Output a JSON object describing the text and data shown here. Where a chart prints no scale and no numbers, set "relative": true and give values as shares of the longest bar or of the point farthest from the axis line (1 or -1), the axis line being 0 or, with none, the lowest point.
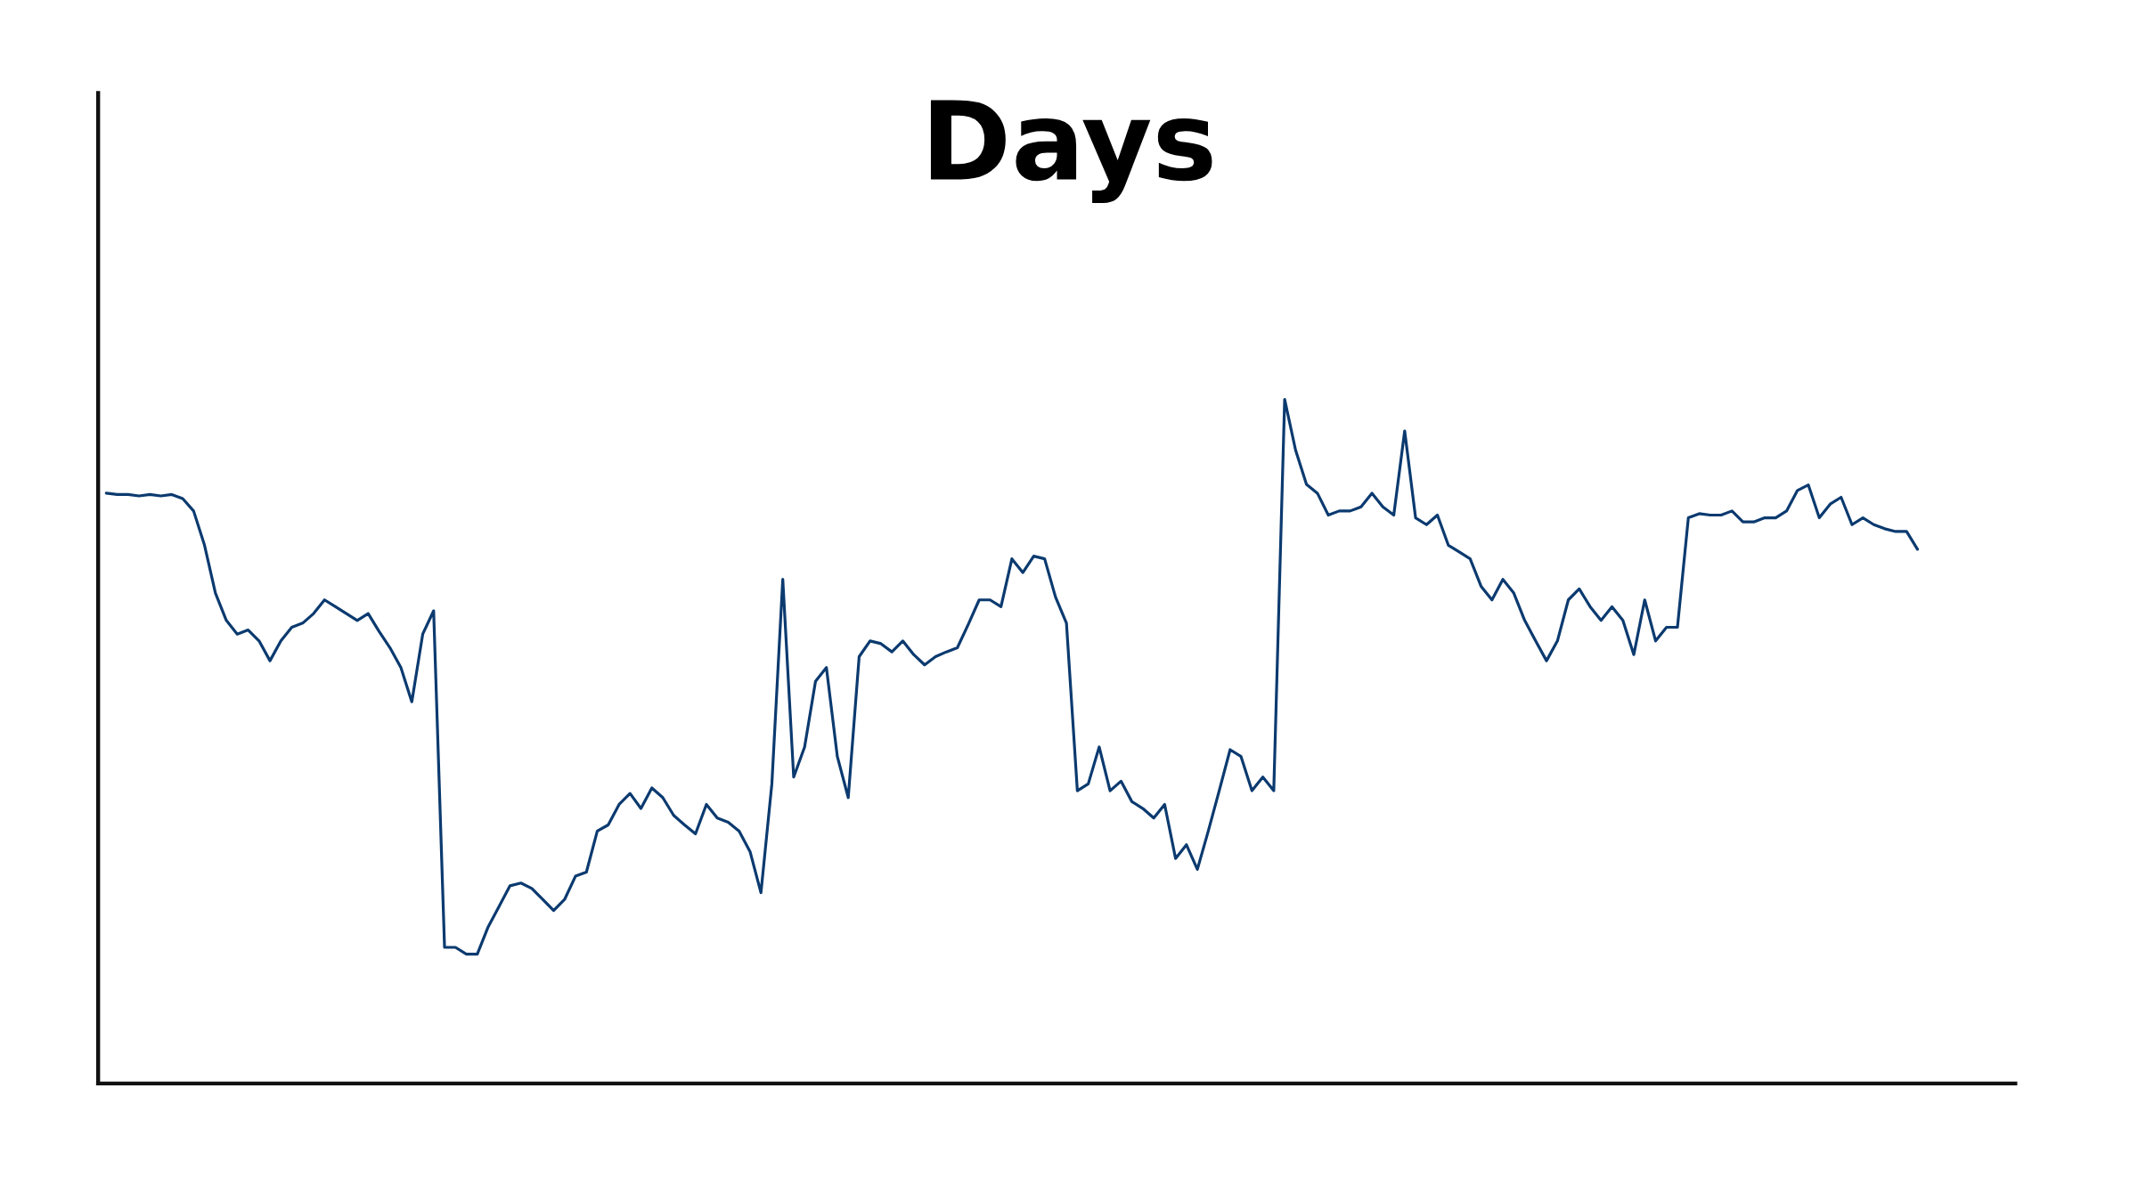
{
  "chart_data": {
    "type": "line",
    "title": "Days",
    "relative": true,
    "grid": false,
    "tick_labels": false,
    "categories": [
      null,
      null,
      null,
      null,
      null,
      null,
      null,
      null,
      null,
      null,
      null,
      null,
      null,
      null,
      null,
      null,
      null,
      null,
      null,
      null,
      null,
      null,
      null,
      null,
      null,
      null,
      null,
      null,
      null,
      null,
      null,
      null,
      null,
      null,
      null,
      null,
      null,
      null,
      null,
      null,
      null,
      null,
      null,
      null,
      null,
      null,
      null,
      null,
      null,
      null,
      null,
      null,
      null,
      null,
      null,
      null,
      null,
      null,
      null,
      null,
      null,
      null,
      null,
      null,
      null,
      null,
      null,
      null,
      null,
      null,
      null,
      null,
      null,
      null,
      null,
      null,
      null,
      null,
      null,
      null,
      null,
      null,
      null,
      null,
      null,
      null,
      null,
      null,
      null,
      null,
      null,
      null,
      null,
      null,
      null,
      null,
      null,
      null,
      null,
      null,
      null,
      null,
      null,
      null,
      null,
      null,
      null,
      null,
      null,
      null,
      null,
      null,
      null,
      null,
      null,
      null,
      null,
      null,
      null,
      null,
      null,
      null,
      null,
      null,
      null,
      null,
      null,
      null,
      null,
      null,
      null,
      null,
      null,
      null,
      null,
      null,
      null,
      null,
      null,
      null,
      null,
      null,
      null,
      null,
      null,
      null,
      null,
      null,
      null,
      null,
      null,
      null,
      null,
      null,
      null,
      null,
      null,
      null,
      null,
      null,
      null,
      null,
      null,
      null,
      null,
      null,
      null
    ],
    "series": [
      {
        "color": "#0b3a6f",
        "values": [
          0.863,
          0.861,
          0.861,
          0.859,
          0.861,
          0.859,
          0.861,
          0.855,
          0.837,
          0.787,
          0.717,
          0.677,
          0.657,
          0.663,
          0.647,
          0.618,
          0.647,
          0.667,
          0.673,
          0.687,
          0.707,
          0.697,
          0.687,
          0.677,
          0.687,
          0.661,
          0.637,
          0.608,
          0.558,
          0.657,
          0.691,
          0.199,
          0.199,
          0.189,
          0.189,
          0.229,
          0.259,
          0.289,
          0.293,
          0.285,
          0.269,
          0.253,
          0.269,
          0.303,
          0.309,
          0.369,
          0.378,
          0.408,
          0.424,
          0.402,
          0.432,
          0.418,
          0.392,
          0.378,
          0.365,
          0.408,
          0.388,
          0.382,
          0.369,
          0.339,
          0.279,
          0.438,
          0.737,
          0.448,
          0.492,
          0.588,
          0.608,
          0.478,
          0.418,
          0.624,
          0.647,
          0.643,
          0.631,
          0.647,
          0.627,
          0.612,
          0.624,
          0.631,
          0.637,
          0.671,
          0.707,
          0.707,
          0.697,
          0.767,
          0.747,
          0.771,
          0.767,
          0.711,
          0.673,
          0.428,
          0.438,
          0.492,
          0.428,
          0.442,
          0.412,
          0.402,
          0.388,
          0.408,
          0.329,
          0.349,
          0.313,
          0.369,
          0.428,
          0.488,
          0.478,
          0.428,
          0.448,
          0.428,
          1,
          0.926,
          0.876,
          0.863,
          0.831,
          0.837,
          0.837,
          0.843,
          0.863,
          0.843,
          0.831,
          0.954,
          0.827,
          0.817,
          0.831,
          0.787,
          0.777,
          0.767,
          0.727,
          0.707,
          0.737,
          0.717,
          0.677,
          0.647,
          0.618,
          0.647,
          0.707,
          0.723,
          0.697,
          0.677,
          0.697,
          0.677,
          0.627,
          0.707,
          0.647,
          0.667,
          0.667,
          0.827,
          0.833,
          0.831,
          0.831,
          0.837,
          0.821,
          0.821,
          0.827,
          0.827,
          0.837,
          0.867,
          0.875,
          0.827,
          0.847,
          0.857,
          0.817,
          0.827,
          0.817,
          0.811,
          0.807,
          0.807,
          0.781
        ]
      }
    ]
  }
}
